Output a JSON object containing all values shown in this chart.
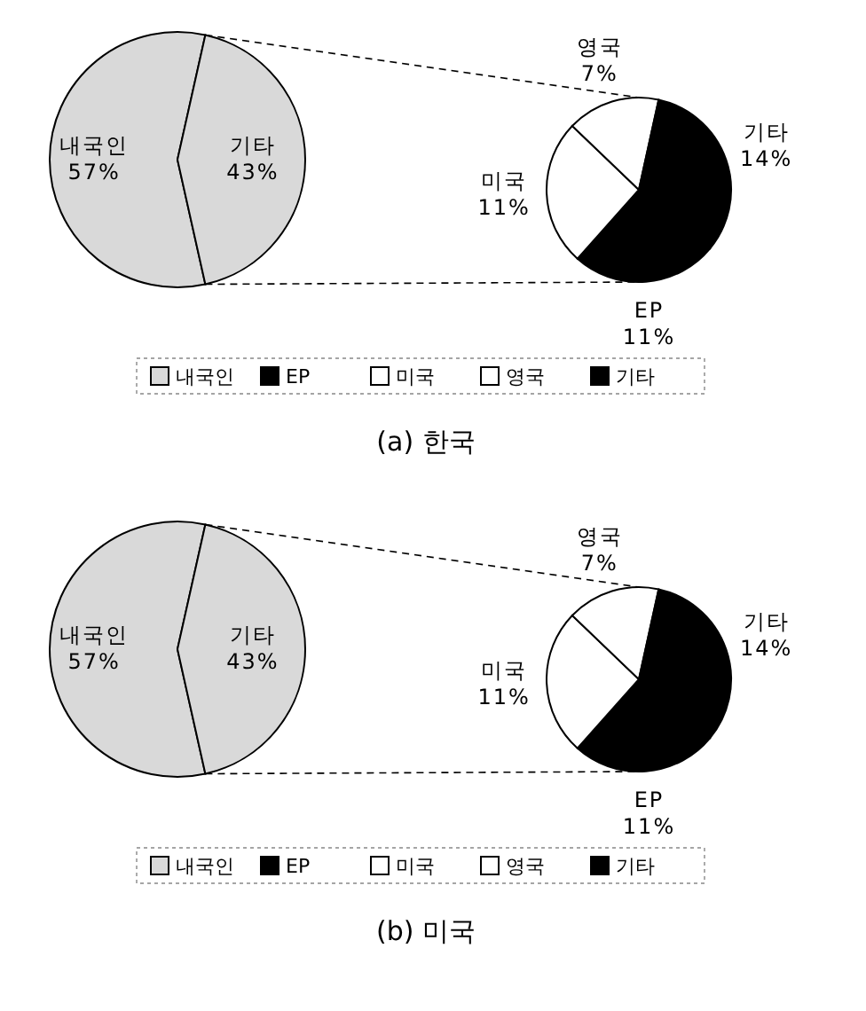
{
  "chart_data": [
    {
      "type": "pie",
      "title": "(a) 한국",
      "categories": [
        "내국인",
        "기타"
      ],
      "values": [
        57,
        43
      ],
      "value_labels": [
        "57%",
        "43%"
      ],
      "colors": [
        "#d9d9d9",
        "#d9d9d9"
      ]
    },
    {
      "type": "pie",
      "categories": [
        "EP",
        "미국",
        "영국",
        "기타"
      ],
      "values": [
        11,
        11,
        7,
        14
      ],
      "value_labels": [
        "11%",
        "11%",
        "7%",
        "14%"
      ],
      "colors": [
        "#000000",
        "#ffffff",
        "#ffffff",
        "#000000"
      ],
      "legend": "bottom"
    },
    {
      "type": "pie",
      "title": "(b) 미국",
      "categories": [
        "내국인",
        "기타"
      ],
      "values": [
        57,
        43
      ],
      "value_labels": [
        "57%",
        "43%"
      ],
      "colors": [
        "#d9d9d9",
        "#d9d9d9"
      ]
    },
    {
      "type": "pie",
      "categories": [
        "EP",
        "미국",
        "영국",
        "기타"
      ],
      "values": [
        11,
        11,
        7,
        14
      ],
      "value_labels": [
        "11%",
        "11%",
        "7%",
        "14%"
      ],
      "colors": [
        "#000000",
        "#ffffff",
        "#ffffff",
        "#000000"
      ],
      "legend": "bottom"
    }
  ]
}
